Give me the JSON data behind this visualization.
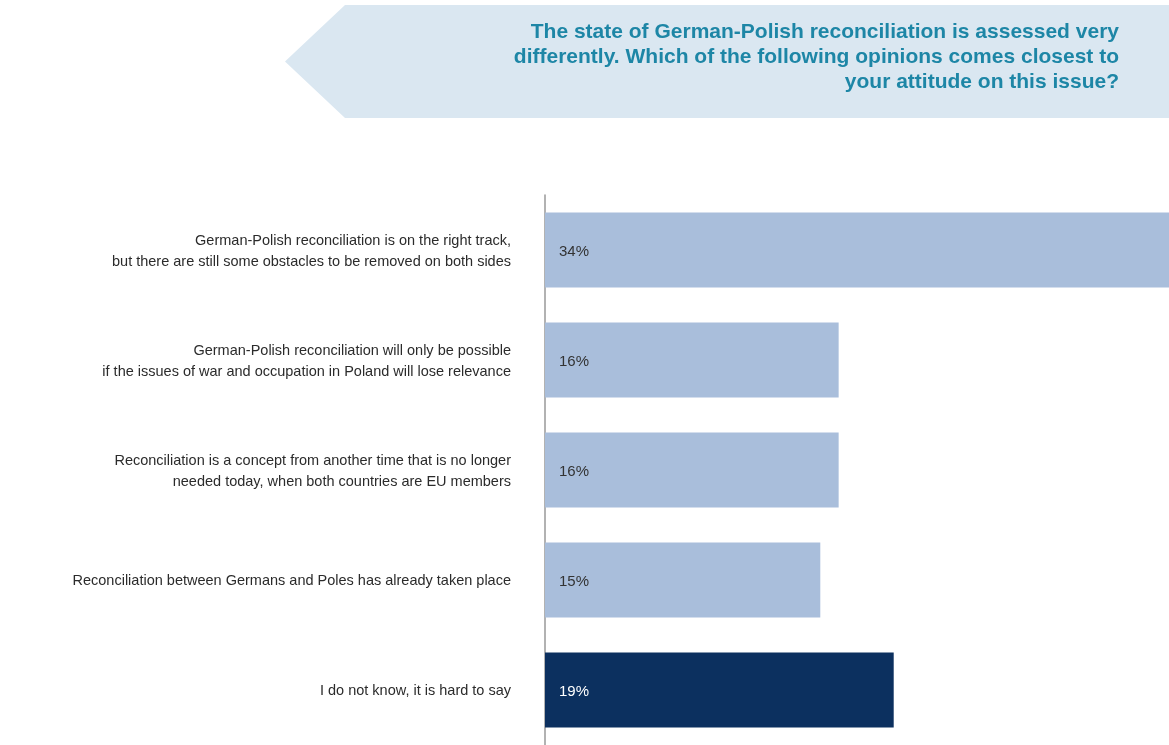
{
  "chart_data": {
    "type": "bar",
    "orientation": "horizontal",
    "title": "The state of German-Polish reconciliation is assessed very differently. Which of the following opinions comes closest to your attitude on this issue?",
    "categories": [
      "German-Polish reconciliation is on the right track,\nbut there are still some obstacles to be removed on both sides",
      "German-Polish reconciliation will only be possible\nif the issues of war and occupation in Poland will lose relevance",
      "Reconciliation is a concept from another time that is no longer\nneeded today, when both countries are EU members",
      "Reconciliation between Germans and Poles has already taken place",
      "I do not know, it is hard to say"
    ],
    "values": [
      34,
      16,
      16,
      15,
      19
    ],
    "colors": [
      "#a9bedb",
      "#a9bedb",
      "#a9bedb",
      "#a9bedb",
      "#0c305f"
    ],
    "value_labels": [
      "34%",
      "16%",
      "16%",
      "15%",
      "19%"
    ],
    "xlim": [
      0,
      34
    ],
    "grid": false,
    "tick_labels": "y"
  }
}
